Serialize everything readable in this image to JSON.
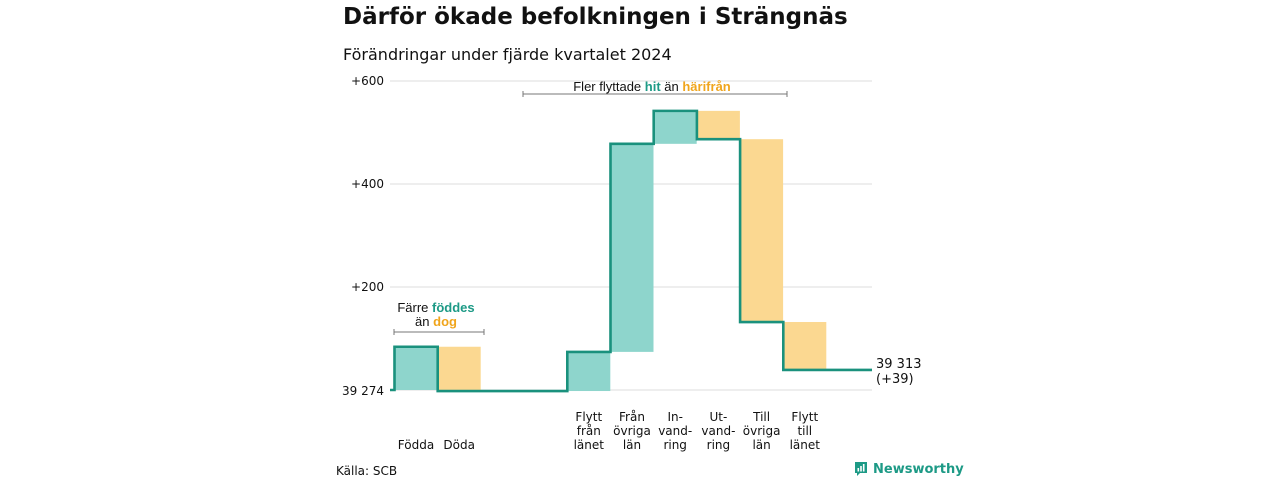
{
  "title": "Därför ökade befolkningen i Strängnäs",
  "subtitle": "Förändringar under fjärde kvartalet 2024",
  "source": "Källa: SCB",
  "brand": "Newsworthy",
  "colors": {
    "up": "#8ed5cc",
    "down": "#fbd891",
    "line": "#1a917d",
    "accent_green": "#1d9a86",
    "accent_orange": "#f0a51c"
  },
  "chart_data": {
    "type": "waterfall",
    "base_label": "39 274",
    "end_label_value": "39 313",
    "end_label_change": "(+39)",
    "ylim": [
      0,
      600
    ],
    "yticks": [
      {
        "value": 200,
        "label": "+200"
      },
      {
        "value": 400,
        "label": "+400"
      },
      {
        "value": 600,
        "label": "+600"
      }
    ],
    "grid": true,
    "categories": [
      {
        "label": [
          "Födda"
        ],
        "start": 0,
        "end": 84,
        "kind": "up"
      },
      {
        "label": [
          "Döda"
        ],
        "start": 84,
        "end": -2,
        "kind": "down"
      },
      {
        "label": [
          "Flytt",
          "från",
          "länet"
        ],
        "start": -2,
        "end": 74,
        "kind": "up"
      },
      {
        "label": [
          "Från",
          "övriga",
          "län"
        ],
        "start": 74,
        "end": 478,
        "kind": "up"
      },
      {
        "label": [
          "In-",
          "vand-",
          "ring"
        ],
        "start": 478,
        "end": 542,
        "kind": "up"
      },
      {
        "label": [
          "Ut-",
          "vand-",
          "ring"
        ],
        "start": 542,
        "end": 487,
        "kind": "down"
      },
      {
        "label": [
          "Till",
          "övriga",
          "län"
        ],
        "start": 487,
        "end": 132,
        "kind": "down"
      },
      {
        "label": [
          "Flytt",
          "till",
          "länet"
        ],
        "start": 132,
        "end": 39,
        "kind": "down"
      }
    ],
    "annotations": [
      {
        "id": "births",
        "text": [
          [
            "Färre ",
            "plain"
          ],
          [
            "föddes",
            "green"
          ]
        ],
        "text2": [
          [
            "än ",
            "plain"
          ],
          [
            "dog",
            "orange"
          ]
        ]
      },
      {
        "id": "moves",
        "text": [
          [
            "Fler flyttade ",
            "plain"
          ],
          [
            "hit",
            "green"
          ],
          [
            " än ",
            "plain"
          ],
          [
            "härifrån",
            "orange"
          ]
        ]
      }
    ]
  }
}
